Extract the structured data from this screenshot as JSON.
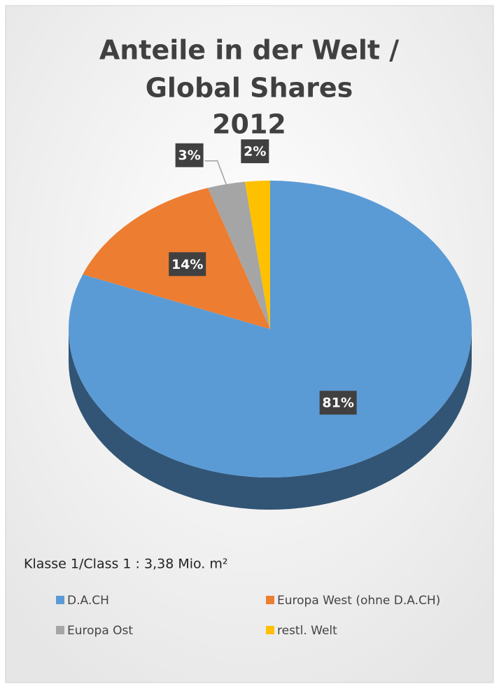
{
  "chart_data": {
    "type": "pie3d",
    "title": [
      "Anteile in der Welt /",
      "Global Shares",
      "2012"
    ],
    "categories": [
      "D.A.CH",
      "Europa West (ohne D.A.CH)",
      "Europa Ost",
      "restl. Welt"
    ],
    "values": [
      81,
      14,
      3,
      2
    ],
    "value_labels": [
      "81%",
      "14%",
      "3%",
      "2%"
    ],
    "colors": [
      "#5b9bd5",
      "#ed7d31",
      "#a5a5a5",
      "#ffc000"
    ],
    "annotation": "Klasse 1/Class 1  :  3,38 Mio. m²",
    "legend": "bottom"
  }
}
